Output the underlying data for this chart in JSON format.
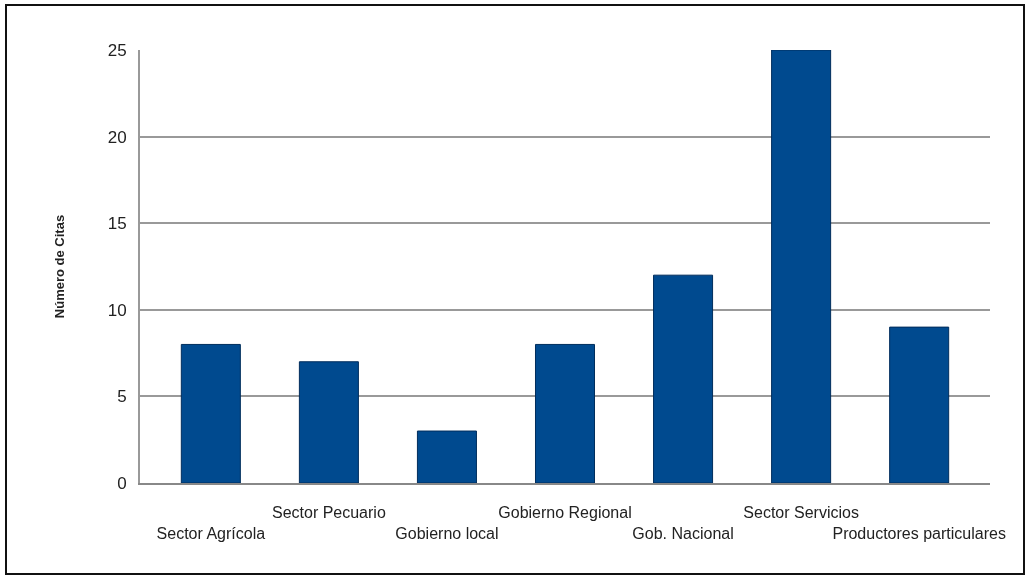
{
  "chart_data": {
    "type": "bar",
    "ylabel": "Número de Citas",
    "categories": [
      "Sector Agrícola",
      "Sector Pecuario",
      "Gobierno local",
      "Gobierno Regional",
      "Gob. Nacional",
      "Sector Servicios",
      "Productores particulares"
    ],
    "values": [
      8,
      7,
      3,
      8,
      12,
      25,
      9
    ],
    "color": "#004a8f",
    "ylim": [
      0,
      25
    ],
    "yticks": [
      0,
      5,
      10,
      15,
      20,
      25
    ],
    "grid": "y"
  }
}
